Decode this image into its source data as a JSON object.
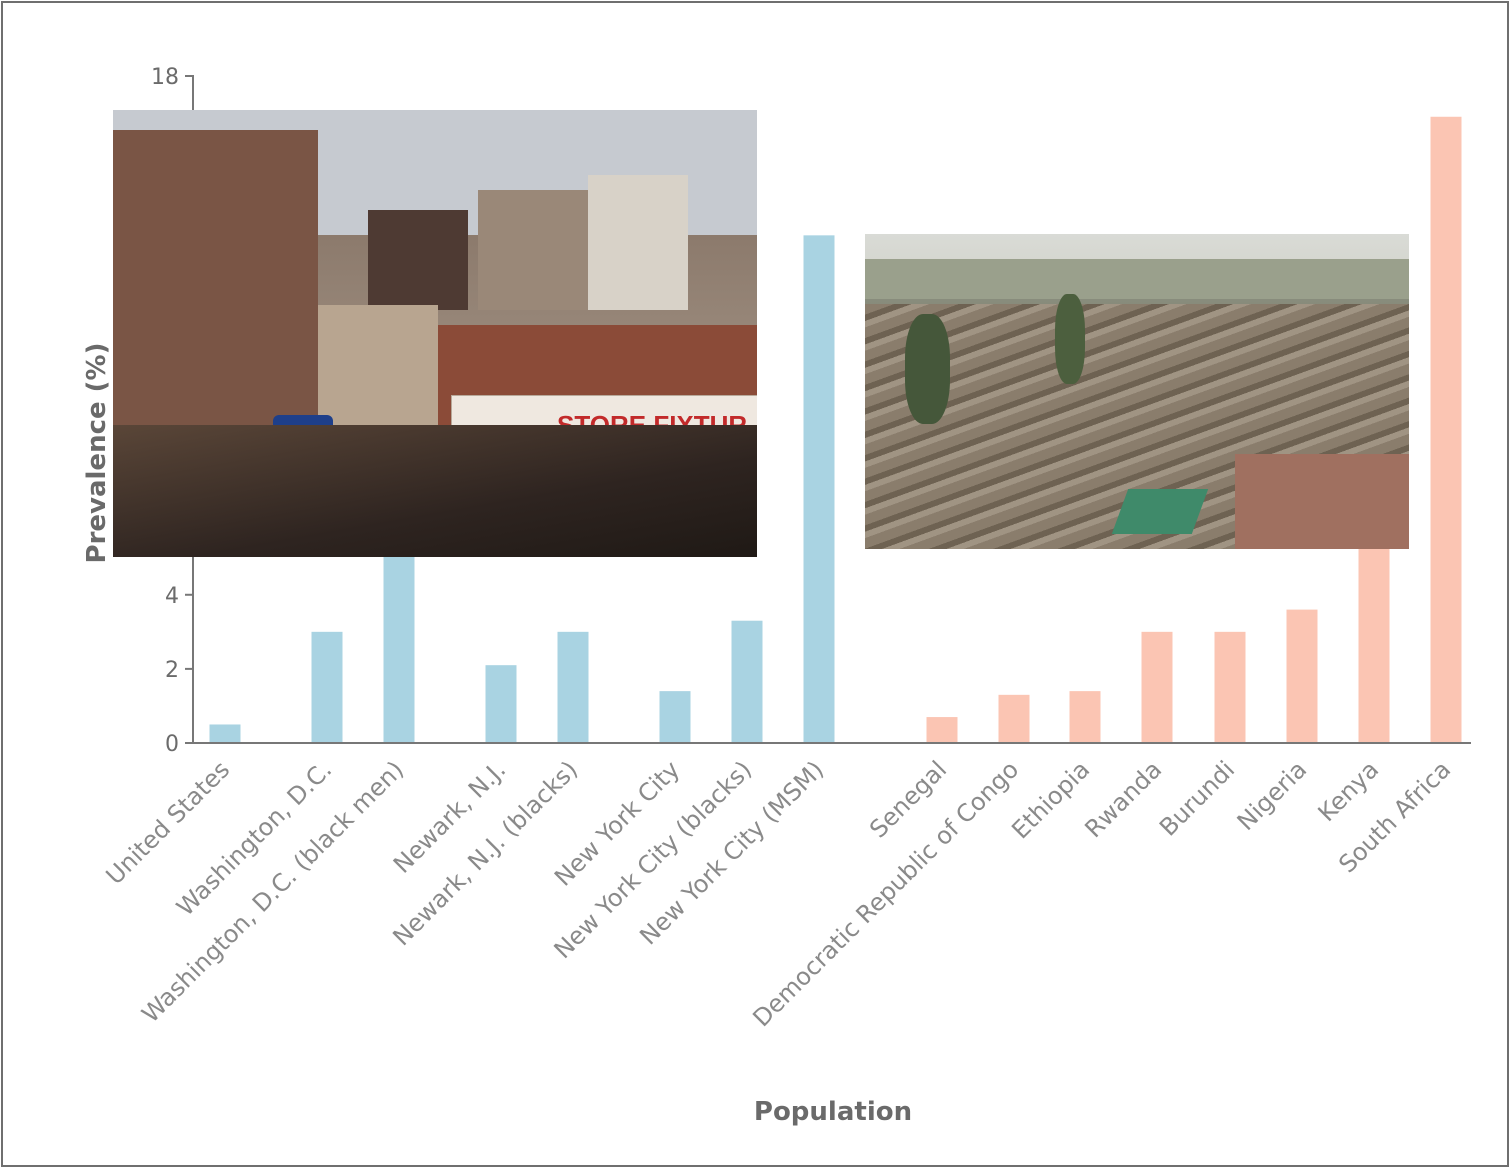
{
  "chart_data": {
    "type": "bar",
    "xlabel": "Population",
    "ylabel": "Prevalence (%)",
    "ylim": [
      0,
      18
    ],
    "yticks": [
      0,
      2,
      4,
      18
    ],
    "grid": false,
    "groups": [
      {
        "color": "#a9d3e2",
        "categories": [
          "United States",
          "Washington, D.C.",
          "Washington, D.C. (black men)",
          "Newark, N.J.",
          "Newark, N.J. (blacks)",
          "New York City",
          "New York City (blacks)",
          "New York City (MSM)"
        ],
        "values": [
          0.5,
          3.0,
          7.0,
          2.1,
          3.0,
          1.4,
          3.3,
          13.7
        ]
      },
      {
        "color": "#fbc5b3",
        "categories": [
          "Senegal",
          "Democratic Republic of Congo",
          "Ethiopia",
          "Rwanda",
          "Burundi",
          "Nigeria",
          "Kenya",
          "South Africa"
        ],
        "values": [
          0.7,
          1.3,
          1.4,
          3.0,
          3.0,
          3.6,
          6.5,
          16.9
        ]
      }
    ]
  },
  "insets": {
    "nyc_photo": {
      "sign_text": "STORE FIXTUR"
    },
    "nairobi_photo": {}
  }
}
